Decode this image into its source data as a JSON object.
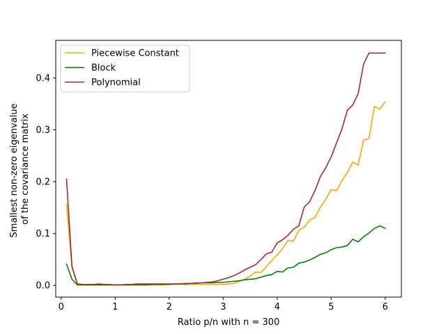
{
  "chart_data": {
    "type": "line",
    "title": "",
    "xlabel": "Ratio p/n with n = 300",
    "ylabel_lines": [
      "Smallest non-zero eigenvalue",
      "of the covariance matrix"
    ],
    "xlim": [
      -0.1,
      6.3
    ],
    "ylim": [
      -0.0225,
      0.4725
    ],
    "xticks": [
      0,
      1,
      2,
      3,
      4,
      5,
      6
    ],
    "yticks": [
      0.0,
      0.1,
      0.2,
      0.3,
      0.4
    ],
    "xtick_labels": [
      "0",
      "1",
      "2",
      "3",
      "4",
      "5",
      "6"
    ],
    "ytick_labels": [
      "0.0",
      "0.1",
      "0.2",
      "0.3",
      "0.4"
    ],
    "grid": false,
    "legend_position": "top-left",
    "x": [
      0.1,
      0.2,
      0.3,
      0.4,
      0.5,
      0.6,
      0.7,
      0.8,
      0.9,
      1.0,
      1.1,
      1.2,
      1.3,
      1.4,
      1.5,
      1.6,
      1.7,
      1.8,
      1.9,
      2.0,
      2.1,
      2.2,
      2.3,
      2.4,
      2.5,
      2.6,
      2.7,
      2.8,
      2.9,
      3.0,
      3.1,
      3.2,
      3.3,
      3.4,
      3.5,
      3.6,
      3.7,
      3.8,
      3.9,
      4.0,
      4.1,
      4.2,
      4.3,
      4.4,
      4.5,
      4.6,
      4.7,
      4.8,
      4.9,
      5.0,
      5.1,
      5.2,
      5.3,
      5.4,
      5.5,
      5.6,
      5.7,
      5.8,
      5.9,
      6.0
    ],
    "series": [
      {
        "name": "Piecewise Constant",
        "color": "#ffa500",
        "values": [
          0.157,
          0.035,
          0.002,
          0.001,
          0.001,
          0.001,
          0.001,
          0.001,
          0.001,
          0.001,
          0.001,
          0.001,
          0.001,
          0.001,
          0.001,
          0.001,
          0.001,
          0.001,
          0.001,
          0.002,
          0.002,
          0.002,
          0.002,
          0.002,
          0.002,
          0.002,
          0.002,
          0.002,
          0.002,
          0.002,
          0.003,
          0.004,
          0.008,
          0.012,
          0.018,
          0.026,
          0.025,
          0.036,
          0.048,
          0.059,
          0.071,
          0.087,
          0.085,
          0.106,
          0.112,
          0.126,
          0.131,
          0.151,
          0.166,
          0.185,
          0.183,
          0.202,
          0.218,
          0.238,
          0.232,
          0.28,
          0.283,
          0.345,
          0.34,
          0.354
        ]
      },
      {
        "name": "Block",
        "color": "#008000",
        "values": [
          0.041,
          0.012,
          0.001,
          0.001,
          0.001,
          0.001,
          0.001,
          0.001,
          0.001,
          0.001,
          0.001,
          0.001,
          0.001,
          0.001,
          0.001,
          0.001,
          0.002,
          0.002,
          0.002,
          0.002,
          0.003,
          0.003,
          0.003,
          0.004,
          0.004,
          0.005,
          0.005,
          0.005,
          0.006,
          0.006,
          0.007,
          0.008,
          0.009,
          0.011,
          0.012,
          0.013,
          0.016,
          0.019,
          0.021,
          0.027,
          0.026,
          0.034,
          0.035,
          0.043,
          0.045,
          0.049,
          0.054,
          0.06,
          0.063,
          0.069,
          0.073,
          0.074,
          0.077,
          0.089,
          0.084,
          0.094,
          0.101,
          0.11,
          0.115,
          0.11
        ]
      },
      {
        "name": "Polynomial",
        "color": "#a52a2a",
        "values": [
          0.205,
          0.037,
          0.003,
          0.002,
          0.002,
          0.002,
          0.003,
          0.002,
          0.002,
          0.001,
          0.001,
          0.002,
          0.002,
          0.003,
          0.003,
          0.003,
          0.003,
          0.003,
          0.003,
          0.003,
          0.003,
          0.003,
          0.004,
          0.004,
          0.005,
          0.005,
          0.006,
          0.007,
          0.009,
          0.012,
          0.015,
          0.019,
          0.024,
          0.03,
          0.035,
          0.04,
          0.05,
          0.061,
          0.064,
          0.082,
          0.088,
          0.097,
          0.108,
          0.115,
          0.151,
          0.161,
          0.183,
          0.21,
          0.227,
          0.248,
          0.275,
          0.302,
          0.338,
          0.348,
          0.37,
          0.427,
          0.448,
          0.448,
          0.448,
          0.448
        ]
      }
    ]
  }
}
